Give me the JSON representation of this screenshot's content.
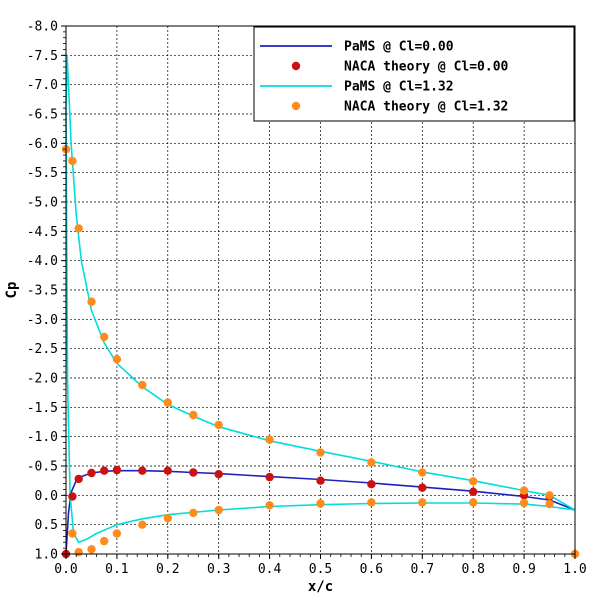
{
  "chart_data": {
    "type": "line",
    "xlabel": "x/c",
    "ylabel": "Cp",
    "xlim": [
      0.0,
      1.0
    ],
    "ylim": [
      -8.0,
      1.0
    ],
    "y_inverted": true,
    "grid": true,
    "legend_position": "top-right",
    "x_ticks": [
      "0.0",
      "0.1",
      "0.2",
      "0.3",
      "0.4",
      "0.5",
      "0.6",
      "0.7",
      "0.8",
      "0.9",
      "1.0"
    ],
    "y_ticks": [
      "-8.0",
      "-7.5",
      "-7.0",
      "-6.5",
      "-6.0",
      "-5.5",
      "-5.0",
      "-4.5",
      "-4.0",
      "-3.5",
      "-3.0",
      "-2.5",
      "-2.0",
      "-1.5",
      "-1.0",
      "-0.5",
      "0.0",
      "0.5",
      "1.0"
    ],
    "series": [
      {
        "name": "PaMS         @ Cl=0.00",
        "kind": "line",
        "color": "#2020c0",
        "x": [
          0.0,
          0.005,
          0.01,
          0.02,
          0.03,
          0.05,
          0.075,
          0.1,
          0.15,
          0.2,
          0.25,
          0.3,
          0.4,
          0.5,
          0.6,
          0.7,
          0.8,
          0.9,
          0.95,
          1.0
        ],
        "y": [
          1.0,
          0.3,
          -0.05,
          -0.25,
          -0.32,
          -0.38,
          -0.41,
          -0.42,
          -0.42,
          -0.41,
          -0.39,
          -0.37,
          -0.32,
          -0.27,
          -0.21,
          -0.14,
          -0.07,
          0.02,
          0.08,
          0.25
        ]
      },
      {
        "name": "NACA theory @ Cl=0.00",
        "kind": "scatter",
        "color": "#cc1111",
        "x": [
          0.0,
          0.0125,
          0.025,
          0.05,
          0.075,
          0.1,
          0.15,
          0.2,
          0.25,
          0.3,
          0.4,
          0.5,
          0.6,
          0.7,
          0.8,
          0.9,
          0.95
        ],
        "y": [
          1.0,
          0.02,
          -0.28,
          -0.38,
          -0.42,
          -0.43,
          -0.42,
          -0.42,
          -0.39,
          -0.36,
          -0.31,
          -0.25,
          -0.19,
          -0.13,
          -0.06,
          0.0,
          0.02
        ]
      },
      {
        "name": "PaMS         @ Cl=1.32",
        "kind": "line",
        "color": "#00dddd",
        "x": [
          0.0,
          0.002,
          0.005,
          0.01,
          0.02,
          0.03,
          0.05,
          0.075,
          0.1,
          0.15,
          0.2,
          0.25,
          0.3,
          0.4,
          0.5,
          0.6,
          0.7,
          0.8,
          0.9,
          0.95,
          1.0
        ],
        "y": [
          -6.6,
          -7.5,
          -7.0,
          -6.0,
          -4.8,
          -4.0,
          -3.15,
          -2.6,
          -2.25,
          -1.85,
          -1.55,
          -1.35,
          -1.17,
          -0.93,
          -0.75,
          -0.58,
          -0.4,
          -0.25,
          -0.08,
          0.0,
          0.25
        ]
      },
      {
        "name": "PaMS lower @ Cl=1.32",
        "kind": "line",
        "color": "#00dddd",
        "x": [
          0.0,
          0.003,
          0.008,
          0.015,
          0.025,
          0.04,
          0.06,
          0.1,
          0.15,
          0.2,
          0.3,
          0.4,
          0.5,
          0.6,
          0.7,
          0.8,
          0.9,
          0.95,
          1.0
        ],
        "y": [
          -6.6,
          -2.0,
          0.0,
          0.65,
          0.8,
          0.75,
          0.65,
          0.5,
          0.4,
          0.33,
          0.25,
          0.19,
          0.16,
          0.14,
          0.13,
          0.13,
          0.15,
          0.19,
          0.25
        ]
      },
      {
        "name": "NACA theory @ Cl=1.32",
        "kind": "scatter",
        "color": "#ff8c1a",
        "x": [
          0.0,
          0.0125,
          0.025,
          0.05,
          0.075,
          0.1,
          0.15,
          0.2,
          0.25,
          0.3,
          0.4,
          0.5,
          0.6,
          0.7,
          0.8,
          0.9,
          0.95,
          0.0125,
          0.025,
          0.05,
          0.075,
          0.1,
          0.15,
          0.2,
          0.25,
          0.3,
          0.4,
          0.5,
          0.6,
          0.7,
          0.8,
          0.9,
          0.95,
          1.0
        ],
        "y": [
          -5.9,
          -5.7,
          -4.55,
          -3.3,
          -2.7,
          -2.32,
          -1.88,
          -1.58,
          -1.37,
          -1.2,
          -0.95,
          -0.73,
          -0.56,
          -0.39,
          -0.24,
          -0.08,
          0.0,
          0.65,
          0.97,
          0.92,
          0.78,
          0.65,
          0.5,
          0.39,
          0.3,
          0.25,
          0.17,
          0.14,
          0.12,
          0.12,
          0.12,
          0.13,
          0.15,
          1.0
        ]
      }
    ],
    "legend": [
      {
        "label": "PaMS         @ Cl=0.00",
        "kind": "line",
        "color": "#2020c0"
      },
      {
        "label": "NACA theory @ Cl=0.00",
        "kind": "marker",
        "color": "#cc1111"
      },
      {
        "label": "PaMS         @ Cl=1.32",
        "kind": "line",
        "color": "#00dddd"
      },
      {
        "label": "NACA theory @ Cl=1.32",
        "kind": "marker",
        "color": "#ff8c1a"
      }
    ]
  }
}
